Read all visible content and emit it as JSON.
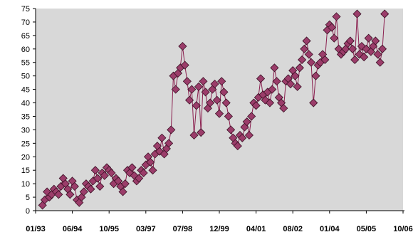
{
  "chart_data": {
    "type": "line",
    "title": "",
    "xlabel": "",
    "ylabel": "",
    "marker": "diamond",
    "grid": false,
    "legend": "none",
    "colors": {
      "plot_background": "#d8d8d8",
      "line": "#8b1f4f",
      "marker_fill": "#9b3d6a",
      "marker_edge": "#3a0f24",
      "axis": "#000000"
    },
    "x_axis": {
      "min": 0,
      "max": 160,
      "ticks": [
        {
          "pos": 0,
          "label": "01/93"
        },
        {
          "pos": 16,
          "label": "06/94"
        },
        {
          "pos": 32,
          "label": "10/95"
        },
        {
          "pos": 48,
          "label": "03/97"
        },
        {
          "pos": 64,
          "label": "07/98"
        },
        {
          "pos": 80,
          "label": "12/99"
        },
        {
          "pos": 96,
          "label": "04/01"
        },
        {
          "pos": 112,
          "label": "08/02"
        },
        {
          "pos": 128,
          "label": "01/04"
        },
        {
          "pos": 144,
          "label": "05/05"
        },
        {
          "pos": 160,
          "label": "10/06"
        }
      ]
    },
    "y_axis": {
      "min": 0,
      "max": 75,
      "ticks": [
        0,
        5,
        10,
        15,
        20,
        25,
        30,
        35,
        40,
        45,
        50,
        55,
        60,
        65,
        70,
        75
      ]
    },
    "series": [
      {
        "x": [
          3,
          4,
          5,
          6,
          7,
          8,
          9,
          10,
          11,
          12,
          13,
          14,
          15,
          16,
          17,
          18,
          19,
          20,
          21,
          22,
          23,
          24,
          25,
          26,
          27,
          28,
          29,
          30,
          31,
          32,
          33,
          34,
          35,
          36,
          37,
          38,
          39,
          40,
          41,
          42,
          43,
          44,
          45,
          46,
          47,
          48,
          49,
          50,
          51,
          52,
          53,
          54,
          55,
          56,
          57,
          58,
          59,
          60,
          61,
          62,
          63,
          64,
          65,
          66,
          67,
          68,
          69,
          70,
          71,
          72,
          73,
          74,
          75,
          76,
          77,
          78,
          79,
          80,
          81,
          82,
          83,
          84,
          85,
          86,
          87,
          88,
          89,
          90,
          91,
          92,
          93,
          94,
          95,
          96,
          97,
          98,
          99,
          100,
          101,
          102,
          103,
          104,
          105,
          106,
          107,
          108,
          109,
          110,
          111,
          112,
          113,
          114,
          115,
          116,
          117,
          118,
          119,
          120,
          121,
          122,
          123,
          124,
          125,
          126,
          127,
          128,
          129,
          130,
          131,
          132,
          133,
          134,
          135,
          136,
          137,
          138,
          139,
          140,
          141,
          142,
          143,
          144,
          145,
          146,
          147,
          148,
          149,
          150,
          151,
          152
        ],
        "y": [
          2,
          4,
          7,
          5,
          6,
          8,
          7,
          6,
          9,
          12,
          10,
          8,
          6,
          11,
          9,
          4,
          3,
          5,
          7,
          10,
          9,
          8,
          11,
          15,
          12,
          9,
          14,
          13,
          16,
          15,
          14,
          10,
          12,
          11,
          9,
          7,
          10,
          15,
          14,
          16,
          13,
          11,
          12,
          15,
          14,
          17,
          20,
          18,
          15,
          21,
          24,
          22,
          27,
          21,
          23,
          25,
          30,
          50,
          45,
          51,
          53,
          61,
          54,
          48,
          41,
          45,
          28,
          39,
          46,
          29,
          48,
          44,
          38,
          40,
          45,
          47,
          41,
          36,
          48,
          44,
          40,
          35,
          30,
          27,
          25,
          24,
          28,
          27,
          31,
          33,
          28,
          35,
          40,
          39,
          42,
          49,
          43,
          41,
          44,
          40,
          45,
          53,
          48,
          42,
          40,
          38,
          48,
          49,
          47,
          52,
          50,
          46,
          53,
          56,
          60,
          63,
          58,
          55,
          40,
          50,
          54,
          55,
          58,
          56,
          67,
          69,
          68,
          64,
          72,
          60,
          58,
          59,
          60,
          62,
          63,
          60,
          56,
          73,
          58,
          61,
          57,
          60,
          64,
          59,
          61,
          63,
          58,
          55,
          60,
          73
        ]
      }
    ]
  }
}
